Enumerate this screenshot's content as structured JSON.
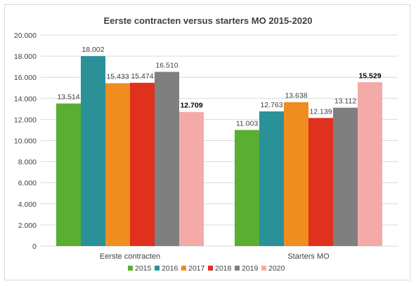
{
  "chart_data": {
    "type": "bar",
    "title": "Eerste contracten versus starters MO 2015-2020",
    "categories": [
      "Eerste contracten",
      "Starters MO"
    ],
    "series": [
      {
        "name": "2015",
        "color": "#5aae32",
        "values": [
          13514,
          11003
        ],
        "labels": [
          "13.514",
          "11.003"
        ],
        "bold": [
          false,
          false
        ]
      },
      {
        "name": "2016",
        "color": "#2a9198",
        "values": [
          18002,
          12763
        ],
        "labels": [
          "18.002",
          "12.763"
        ],
        "bold": [
          false,
          false
        ]
      },
      {
        "name": "2017",
        "color": "#ef8d1e",
        "values": [
          15433,
          13638
        ],
        "labels": [
          "15.433",
          "13.638"
        ],
        "bold": [
          false,
          false
        ]
      },
      {
        "name": "2018",
        "color": "#e0301e",
        "values": [
          15474,
          12139
        ],
        "labels": [
          "15.474",
          "12.139"
        ],
        "bold": [
          false,
          false
        ]
      },
      {
        "name": "2019",
        "color": "#7f7f7f",
        "values": [
          16510,
          13112
        ],
        "labels": [
          "16.510",
          "13.112"
        ],
        "bold": [
          false,
          false
        ]
      },
      {
        "name": "2020",
        "color": "#f4aaa6",
        "values": [
          12709,
          15529
        ],
        "labels": [
          "12.709",
          "15.529"
        ],
        "bold": [
          true,
          true
        ]
      }
    ],
    "ylim": [
      0,
      20000
    ],
    "ytick_values": [
      0,
      2000,
      4000,
      6000,
      8000,
      10000,
      12000,
      14000,
      16000,
      18000,
      20000
    ],
    "ytick_labels": [
      "0",
      "2.000",
      "4.000",
      "6.000",
      "8.000",
      "10.000",
      "12.000",
      "14.000",
      "16.000",
      "18.000",
      "20.000"
    ],
    "grid": true,
    "legend": "bottom"
  }
}
